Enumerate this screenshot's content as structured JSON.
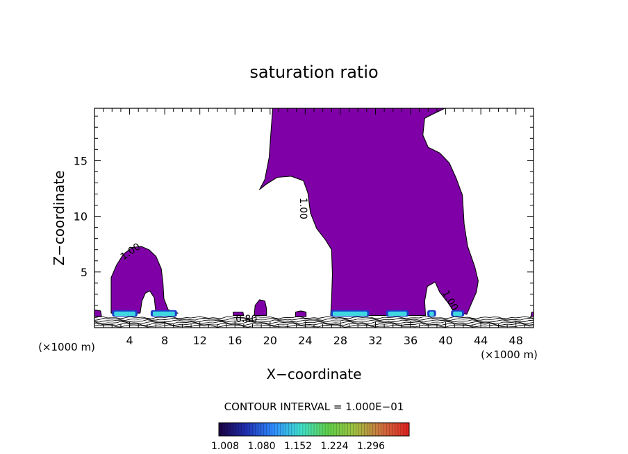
{
  "chart_data": {
    "type": "contour",
    "title": "saturation ratio",
    "xlabel": "X−coordinate",
    "ylabel": "Z−coordinate",
    "x_units_left": "(×1000 m)",
    "x_units_right": "(×1000 m)",
    "xlim": [
      0,
      50
    ],
    "ylim": [
      0,
      19.7
    ],
    "x_ticks": [
      4,
      8,
      12,
      16,
      20,
      24,
      28,
      32,
      36,
      40,
      44,
      48
    ],
    "y_ticks": [
      5,
      10,
      15
    ],
    "contour_labels": [
      {
        "text": "1.00",
        "x": 4.3,
        "y": 6.6,
        "rotate": -35
      },
      {
        "text": "1.00",
        "x": 23.4,
        "y": 10.7,
        "rotate": 90
      },
      {
        "text": "1.00",
        "x": 40.2,
        "y": 2.3,
        "rotate": 60
      },
      {
        "text": "0.80",
        "x": 17.3,
        "y": 0.5,
        "rotate": 0
      }
    ],
    "fill_color": "#8000a8",
    "contour_interval_text": "CONTOUR INTERVAL = 1.000E−01",
    "colorbar": {
      "labels": [
        "1.008",
        "1.080",
        "1.152",
        "1.224",
        "1.296"
      ],
      "colors": [
        "#1a0040",
        "#1e2fb0",
        "#2f8cff",
        "#3fe0d0",
        "#5fd04a",
        "#a0c040",
        "#d07040",
        "#e02020"
      ]
    },
    "regions": [
      {
        "name": "left-cloud",
        "points": [
          [
            1.9,
            1.3
          ],
          [
            1.9,
            4.5
          ],
          [
            2.5,
            5.6
          ],
          [
            3.3,
            6.6
          ],
          [
            4.3,
            7.2
          ],
          [
            5.3,
            7.3
          ],
          [
            6.2,
            7.0
          ],
          [
            7.0,
            6.4
          ],
          [
            7.6,
            5.3
          ],
          [
            7.8,
            4.0
          ],
          [
            7.9,
            2.6
          ],
          [
            8.4,
            1.6
          ],
          [
            9.5,
            1.3
          ],
          [
            7.0,
            1.3
          ],
          [
            6.8,
            2.7
          ],
          [
            6.3,
            3.3
          ],
          [
            5.8,
            3.1
          ],
          [
            5.4,
            2.4
          ],
          [
            5.2,
            1.3
          ]
        ]
      },
      {
        "name": "big-cloud",
        "points": [
          [
            20.3,
            19.7
          ],
          [
            20.1,
            17.6
          ],
          [
            19.9,
            15.3
          ],
          [
            19.4,
            13.3
          ],
          [
            18.8,
            12.4
          ],
          [
            19.6,
            12.9
          ],
          [
            20.8,
            13.5
          ],
          [
            22.4,
            13.6
          ],
          [
            23.8,
            13.2
          ],
          [
            24.3,
            12.1
          ],
          [
            24.6,
            10.3
          ],
          [
            25.3,
            8.9
          ],
          [
            26.3,
            7.9
          ],
          [
            27.0,
            7.0
          ],
          [
            27.1,
            4.8
          ],
          [
            27.0,
            2.5
          ],
          [
            26.9,
            1.1
          ],
          [
            37.7,
            1.1
          ],
          [
            37.6,
            2.4
          ],
          [
            37.9,
            3.7
          ],
          [
            38.8,
            4.1
          ],
          [
            39.3,
            3.2
          ],
          [
            40.2,
            2.3
          ],
          [
            40.8,
            1.6
          ],
          [
            42.4,
            1.2
          ],
          [
            43.0,
            2.3
          ],
          [
            43.5,
            3.2
          ],
          [
            43.7,
            4.2
          ],
          [
            43.3,
            5.5
          ],
          [
            42.5,
            7.3
          ],
          [
            42.1,
            9.3
          ],
          [
            41.9,
            11.9
          ],
          [
            41.2,
            13.4
          ],
          [
            40.4,
            14.8
          ],
          [
            39.3,
            15.7
          ],
          [
            38.0,
            16.2
          ],
          [
            37.4,
            17.3
          ],
          [
            37.6,
            18.8
          ],
          [
            38.6,
            19.2
          ],
          [
            39.9,
            19.7
          ]
        ]
      },
      {
        "name": "small-bump-18",
        "points": [
          [
            18.2,
            1.1
          ],
          [
            18.3,
            2.0
          ],
          [
            18.8,
            2.5
          ],
          [
            19.4,
            2.4
          ],
          [
            19.6,
            1.7
          ],
          [
            19.6,
            1.1
          ]
        ]
      },
      {
        "name": "small-bump-16",
        "points": [
          [
            15.8,
            1.1
          ],
          [
            15.8,
            1.4
          ],
          [
            16.9,
            1.4
          ],
          [
            17.0,
            1.1
          ]
        ]
      },
      {
        "name": "small-bump-23",
        "points": [
          [
            22.9,
            1.0
          ],
          [
            22.9,
            1.4
          ],
          [
            23.5,
            1.5
          ],
          [
            24.1,
            1.4
          ],
          [
            24.1,
            1.0
          ]
        ]
      },
      {
        "name": "left-edge-blob",
        "points": [
          [
            0,
            1.0
          ],
          [
            0,
            1.6
          ],
          [
            0.7,
            1.5
          ],
          [
            0.8,
            1.0
          ]
        ]
      },
      {
        "name": "right-edge-blob",
        "points": [
          [
            49.7,
            1.0
          ],
          [
            49.8,
            1.4
          ],
          [
            50,
            1.4
          ],
          [
            50,
            1.0
          ]
        ]
      }
    ],
    "cyan_bands": [
      [
        2.0,
        4.9
      ],
      [
        6.4,
        9.4
      ],
      [
        26.9,
        31.3
      ],
      [
        33.2,
        35.8
      ],
      [
        37.9,
        38.9
      ],
      [
        40.6,
        42.1
      ]
    ]
  }
}
